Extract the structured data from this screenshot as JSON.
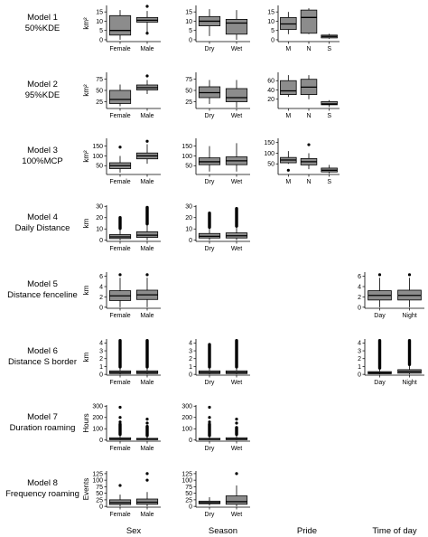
{
  "columns": [
    {
      "key": "sex",
      "label": "Sex"
    },
    {
      "key": "season",
      "label": "Season"
    },
    {
      "key": "pride",
      "label": "Pride"
    },
    {
      "key": "time",
      "label": "Time of day"
    }
  ],
  "chart_data": [
    {
      "type": "box",
      "row": 1,
      "col": "sex",
      "row_label": [
        "Model 1",
        "50%KDE"
      ],
      "ylabel": "km²",
      "yticks": [
        0,
        5,
        10,
        15
      ],
      "ylim": [
        -1,
        18.5
      ],
      "categories": [
        "Female",
        "Male"
      ],
      "boxes": [
        {
          "min": 0,
          "q1": 2.5,
          "median": 5,
          "q3": 13,
          "max": 16,
          "outliers": []
        },
        {
          "min": 4,
          "q1": 9.5,
          "median": 10.5,
          "q3": 12,
          "max": 15.5,
          "outliers": [
            3.5,
            18
          ]
        }
      ]
    },
    {
      "type": "box",
      "row": 1,
      "col": "season",
      "ylabel": "",
      "yticks": [
        0,
        5,
        10,
        15
      ],
      "ylim": [
        -1,
        18.5
      ],
      "categories": [
        "Dry",
        "Wet"
      ],
      "boxes": [
        {
          "min": 2,
          "q1": 7.5,
          "median": 10,
          "q3": 12.5,
          "max": 16.5,
          "outliers": []
        },
        {
          "min": 0,
          "q1": 3,
          "median": 9,
          "q3": 11,
          "max": 16,
          "outliers": []
        }
      ]
    },
    {
      "type": "box",
      "row": 1,
      "col": "pride",
      "ylabel": "",
      "yticks": [
        0,
        5,
        10,
        15
      ],
      "ylim": [
        -1,
        18.5
      ],
      "categories": [
        "M",
        "N",
        "S"
      ],
      "boxes": [
        {
          "min": 3,
          "q1": 5.5,
          "median": 8.5,
          "q3": 12,
          "max": 15,
          "outliers": []
        },
        {
          "min": 3,
          "q1": 3.5,
          "median": 12,
          "q3": 16,
          "max": 17,
          "outliers": []
        },
        {
          "min": 0.5,
          "q1": 1,
          "median": 1.8,
          "q3": 2.5,
          "max": 3.2,
          "outliers": []
        }
      ]
    },
    {
      "type": "box",
      "row": 2,
      "col": "sex",
      "row_label": [
        "Model 2",
        "95%KDE"
      ],
      "ylabel": "km²",
      "yticks": [
        25,
        50,
        75
      ],
      "ylim": [
        10,
        90
      ],
      "categories": [
        "Female",
        "Male"
      ],
      "boxes": [
        {
          "min": 15,
          "q1": 21,
          "median": 30,
          "q3": 50,
          "max": 63,
          "outliers": []
        },
        {
          "min": 42,
          "q1": 51,
          "median": 56,
          "q3": 62,
          "max": 73,
          "outliers": [
            82
          ]
        }
      ]
    },
    {
      "type": "box",
      "row": 2,
      "col": "season",
      "ylabel": "",
      "yticks": [
        25,
        50,
        75
      ],
      "ylim": [
        10,
        90
      ],
      "categories": [
        "Dry",
        "Wet"
      ],
      "boxes": [
        {
          "min": 20,
          "q1": 34,
          "median": 45,
          "q3": 58,
          "max": 73,
          "outliers": []
        },
        {
          "min": 12,
          "q1": 25,
          "median": 34,
          "q3": 54,
          "max": 73,
          "outliers": []
        }
      ]
    },
    {
      "type": "box",
      "row": 2,
      "col": "pride",
      "ylabel": "",
      "yticks": [
        20,
        40,
        60
      ],
      "ylim": [
        0,
        78
      ],
      "categories": [
        "M",
        "N",
        "S"
      ],
      "boxes": [
        {
          "min": 25,
          "q1": 30,
          "median": 38,
          "q3": 60,
          "max": 72,
          "outliers": []
        },
        {
          "min": 20,
          "q1": 30,
          "median": 46,
          "q3": 63,
          "max": 72,
          "outliers": []
        },
        {
          "min": 3,
          "q1": 8,
          "median": 10,
          "q3": 15,
          "max": 18,
          "outliers": []
        }
      ]
    },
    {
      "type": "box",
      "row": 3,
      "col": "sex",
      "row_label": [
        "Model 3",
        "100%MCP"
      ],
      "ylabel": "km²",
      "yticks": [
        50,
        100,
        150
      ],
      "ylim": [
        5,
        190
      ],
      "categories": [
        "Female",
        "Male"
      ],
      "boxes": [
        {
          "min": 15,
          "q1": 35,
          "median": 50,
          "q3": 65,
          "max": 100,
          "outliers": [
            145
          ]
        },
        {
          "min": 60,
          "q1": 85,
          "median": 100,
          "q3": 115,
          "max": 160,
          "outliers": [
            175
          ]
        }
      ]
    },
    {
      "type": "box",
      "row": 3,
      "col": "season",
      "ylabel": "",
      "yticks": [
        50,
        100,
        150
      ],
      "ylim": [
        5,
        190
      ],
      "categories": [
        "Dry",
        "Wet"
      ],
      "boxes": [
        {
          "min": 20,
          "q1": 55,
          "median": 70,
          "q3": 90,
          "max": 150,
          "outliers": []
        },
        {
          "min": 20,
          "q1": 55,
          "median": 75,
          "q3": 95,
          "max": 165,
          "outliers": []
        }
      ]
    },
    {
      "type": "box",
      "row": 3,
      "col": "pride",
      "ylabel": "",
      "yticks": [
        50,
        100,
        150
      ],
      "ylim": [
        0,
        170
      ],
      "categories": [
        "M",
        "N",
        "S"
      ],
      "boxes": [
        {
          "min": 50,
          "q1": 55,
          "median": 68,
          "q3": 80,
          "max": 110,
          "outliers": [
            20
          ]
        },
        {
          "min": 25,
          "q1": 45,
          "median": 60,
          "q3": 75,
          "max": 100,
          "outliers": [
            140
          ]
        },
        {
          "min": 5,
          "q1": 12,
          "median": 20,
          "q3": 30,
          "max": 45,
          "outliers": []
        }
      ]
    },
    {
      "type": "box",
      "row": 4,
      "col": "sex",
      "row_label": [
        "Model 4",
        "Daily Distance"
      ],
      "ylabel": "km",
      "yticks": [
        0,
        10,
        20,
        30
      ],
      "ylim": [
        -1,
        31
      ],
      "categories": [
        "Female",
        "Male"
      ],
      "boxes": [
        {
          "min": 0,
          "q1": 1.5,
          "median": 3,
          "q3": 5,
          "max": 10,
          "outlier_range": [
            10.5,
            20
          ]
        },
        {
          "min": 0,
          "q1": 2.5,
          "median": 4.5,
          "q3": 7.5,
          "max": 14,
          "outlier_range": [
            14.5,
            29
          ]
        }
      ]
    },
    {
      "type": "box",
      "row": 4,
      "col": "season",
      "ylabel": "",
      "yticks": [
        0,
        10,
        20,
        30
      ],
      "ylim": [
        -1,
        31
      ],
      "categories": [
        "Dry",
        "Wet"
      ],
      "boxes": [
        {
          "min": 0,
          "q1": 2,
          "median": 3.5,
          "q3": 6,
          "max": 11,
          "outlier_range": [
            11.5,
            24
          ]
        },
        {
          "min": 0,
          "q1": 2,
          "median": 4,
          "q3": 6.5,
          "max": 12,
          "outlier_range": [
            12.5,
            28
          ]
        }
      ]
    },
    {
      "type": "box",
      "row": 5,
      "col": "sex",
      "row_label": [
        "Model 5",
        "Distance fenceline"
      ],
      "ylabel": "km",
      "yticks": [
        0,
        2,
        4,
        6
      ],
      "ylim": [
        -0.2,
        6.8
      ],
      "categories": [
        "Female",
        "Male"
      ],
      "boxes": [
        {
          "min": 0,
          "q1": 1.3,
          "median": 2.2,
          "q3": 3.2,
          "max": 5.7,
          "outliers": [
            6.3
          ]
        },
        {
          "min": 0,
          "q1": 1.5,
          "median": 2.4,
          "q3": 3.3,
          "max": 5.7,
          "outliers": [
            6.3
          ]
        }
      ]
    },
    {
      "type": "box",
      "row": 5,
      "col": "time",
      "ylabel": "",
      "yticks": [
        0,
        2,
        4,
        6
      ],
      "ylim": [
        -0.2,
        6.8
      ],
      "categories": [
        "Day",
        "Night"
      ],
      "boxes": [
        {
          "min": 0,
          "q1": 1.4,
          "median": 2.3,
          "q3": 3.2,
          "max": 5.7,
          "outliers": [
            6.3
          ]
        },
        {
          "min": 0,
          "q1": 1.4,
          "median": 2.3,
          "q3": 3.3,
          "max": 5.7,
          "outliers": [
            6.3
          ]
        }
      ]
    },
    {
      "type": "box",
      "row": 6,
      "col": "sex",
      "row_label": [
        "Model 6",
        "Distance S border"
      ],
      "ylabel": "km",
      "yticks": [
        0,
        1,
        2,
        3,
        4
      ],
      "ylim": [
        -0.1,
        4.5
      ],
      "categories": [
        "Female",
        "Male"
      ],
      "boxes": [
        {
          "min": 0,
          "q1": 0.1,
          "median": 0.25,
          "q3": 0.45,
          "max": 0.9,
          "outlier_range": [
            0.95,
            4.3
          ]
        },
        {
          "min": 0,
          "q1": 0.1,
          "median": 0.25,
          "q3": 0.45,
          "max": 0.9,
          "outlier_range": [
            0.95,
            4.3
          ]
        }
      ]
    },
    {
      "type": "box",
      "row": 6,
      "col": "season",
      "ylabel": "",
      "yticks": [
        0,
        1,
        2,
        3,
        4
      ],
      "ylim": [
        -0.1,
        4.5
      ],
      "categories": [
        "Dry",
        "Wet"
      ],
      "boxes": [
        {
          "min": 0,
          "q1": 0.1,
          "median": 0.25,
          "q3": 0.45,
          "max": 0.9,
          "outlier_range": [
            0.95,
            3.8
          ]
        },
        {
          "min": 0,
          "q1": 0.1,
          "median": 0.25,
          "q3": 0.45,
          "max": 0.9,
          "outlier_range": [
            0.95,
            4.3
          ]
        }
      ]
    },
    {
      "type": "box",
      "row": 6,
      "col": "time",
      "ylabel": "",
      "yticks": [
        0,
        1,
        2,
        3,
        4
      ],
      "ylim": [
        -0.1,
        4.5
      ],
      "categories": [
        "Day",
        "Night"
      ],
      "boxes": [
        {
          "min": 0,
          "q1": 0.08,
          "median": 0.2,
          "q3": 0.35,
          "max": 0.75,
          "outlier_range": [
            0.8,
            4.3
          ]
        },
        {
          "min": 0,
          "q1": 0.15,
          "median": 0.35,
          "q3": 0.6,
          "max": 1.2,
          "outlier_range": [
            1.25,
            4.3
          ]
        }
      ]
    },
    {
      "type": "box",
      "row": 7,
      "col": "sex",
      "row_label": [
        "Model 7",
        "Duration roaming"
      ],
      "ylabel": "Hours",
      "yticks": [
        0,
        100,
        200,
        300
      ],
      "ylim": [
        -10,
        310
      ],
      "categories": [
        "Female",
        "Male"
      ],
      "boxes": [
        {
          "min": 0,
          "q1": 3,
          "median": 8,
          "q3": 20,
          "max": 45,
          "outlier_range": [
            50,
            140
          ],
          "outliers": [
            160,
            200,
            290
          ]
        },
        {
          "min": 0,
          "q1": 3,
          "median": 7,
          "q3": 15,
          "max": 35,
          "outlier_range": [
            40,
            120
          ],
          "outliers": [
            150,
            185
          ]
        }
      ]
    },
    {
      "type": "box",
      "row": 7,
      "col": "season",
      "ylabel": "",
      "yticks": [
        0,
        100,
        200,
        300
      ],
      "ylim": [
        -10,
        310
      ],
      "categories": [
        "Dry",
        "Wet"
      ],
      "boxes": [
        {
          "min": 0,
          "q1": 3,
          "median": 7,
          "q3": 15,
          "max": 35,
          "outlier_range": [
            40,
            140
          ],
          "outliers": [
            160,
            200,
            290
          ]
        },
        {
          "min": 0,
          "q1": 3,
          "median": 8,
          "q3": 20,
          "max": 45,
          "outlier_range": [
            50,
            110
          ],
          "outliers": [
            150,
            185
          ]
        }
      ]
    },
    {
      "type": "box",
      "row": 8,
      "col": "sex",
      "row_label": [
        "Model 8",
        "Frequency roaming"
      ],
      "ylabel": "Events",
      "yticks": [
        0,
        25,
        50,
        75,
        100,
        125
      ],
      "ylim": [
        -3,
        135
      ],
      "categories": [
        "Female",
        "Male"
      ],
      "boxes": [
        {
          "min": 0,
          "q1": 7,
          "median": 14,
          "q3": 25,
          "max": 45,
          "outliers": [
            80
          ]
        },
        {
          "min": 0,
          "q1": 8,
          "median": 16,
          "q3": 28,
          "max": 55,
          "outliers": [
            100,
            125
          ]
        }
      ]
    },
    {
      "type": "box",
      "row": 8,
      "col": "season",
      "ylabel": "",
      "yticks": [
        0,
        25,
        50,
        75,
        100,
        125
      ],
      "ylim": [
        -3,
        135
      ],
      "categories": [
        "Dry",
        "Wet"
      ],
      "boxes": [
        {
          "min": 3,
          "q1": 10,
          "median": 14,
          "q3": 20,
          "max": 35,
          "outliers": []
        },
        {
          "min": 0,
          "q1": 8,
          "median": 18,
          "q3": 40,
          "max": 80,
          "outliers": [
            125
          ]
        }
      ]
    }
  ]
}
